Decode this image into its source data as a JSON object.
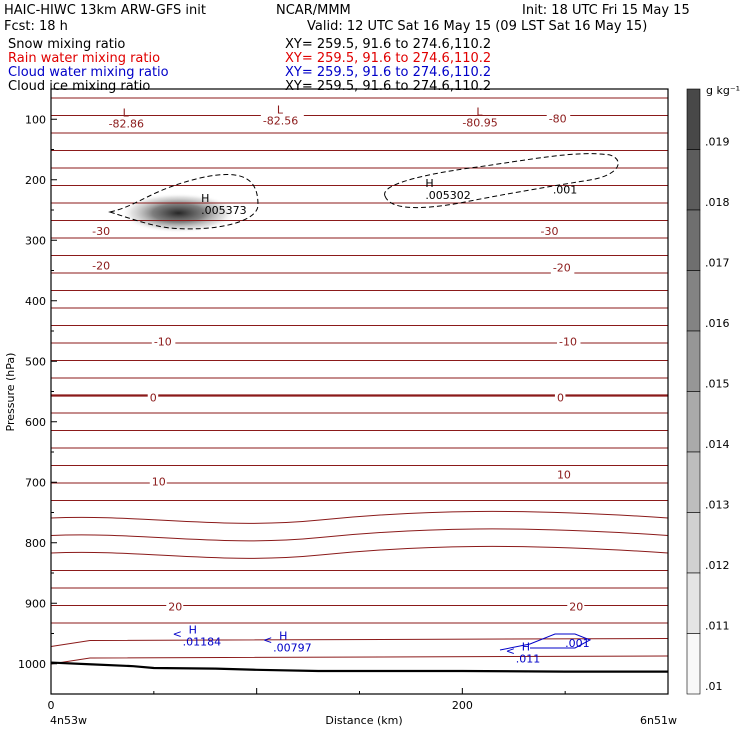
{
  "header": {
    "model": "HAIC-HIWC 13km ARW-GFS init",
    "center": "NCAR/MMM",
    "init": "Init: 18 UTC Fri 15 May 15",
    "fcst": "Fcst:    18 h",
    "valid": "Valid: 12 UTC Sat 16 May 15 (09 LST Sat 16 May 15)"
  },
  "fields": [
    {
      "name": "Snow mixing ratio",
      "xy": "XY= 259.5, 91.6 to 274.6,110.2",
      "color": "#000000"
    },
    {
      "name": "Rain water mixing ratio",
      "xy": "XY= 259.5, 91.6 to 274.6,110.2",
      "color": "#e00000"
    },
    {
      "name": "Cloud water mixing ratio",
      "xy": "XY= 259.5, 91.6 to 274.6,110.2",
      "color": "#0000c8"
    },
    {
      "name": "Cloud ice mixing ratio",
      "xy": "XY= 259.5, 91.6 to 274.6,110.2",
      "color": "#000000"
    }
  ],
  "chart_data": {
    "type": "heatmap",
    "title": "",
    "xlabel": "Distance (km)",
    "ylabel": "Pressure (hPa)",
    "xlim": [
      0,
      300
    ],
    "ylim": [
      1050,
      50
    ],
    "x_ticks": [
      0,
      200
    ],
    "y_ticks": [
      100,
      200,
      300,
      400,
      500,
      600,
      700,
      800,
      900,
      1000
    ],
    "x_endpoint_labels": [
      "4n53w",
      "6n51w"
    ],
    "colorbar": {
      "unit": "g kg⁻¹",
      "labels": [
        ".019",
        ".018",
        ".017",
        ".016",
        ".015",
        ".014",
        ".013",
        ".012",
        ".011",
        ".01"
      ]
    },
    "snow_max": {
      "x": 62,
      "p": 255
    },
    "temperature_labels": [
      {
        "text": "-82.86",
        "x": 28,
        "p": 112,
        "mark": "L"
      },
      {
        "text": "-82.56",
        "x": 103,
        "p": 107,
        "mark": "L"
      },
      {
        "text": "-80.95",
        "x": 200,
        "p": 110,
        "mark": "L"
      },
      {
        "text": "-80",
        "x": 242,
        "p": 104
      },
      {
        "text": "-30",
        "x": 20,
        "p": 290
      },
      {
        "text": "-30",
        "x": 238,
        "p": 290
      },
      {
        "text": "-20",
        "x": 20,
        "p": 347
      },
      {
        "text": "-20",
        "x": 244,
        "p": 350
      },
      {
        "text": "-10",
        "x": 50,
        "p": 472
      },
      {
        "text": "-10",
        "x": 247,
        "p": 472
      },
      {
        "text": "0",
        "x": 48,
        "p": 565
      },
      {
        "text": "0",
        "x": 246,
        "p": 565
      },
      {
        "text": "10",
        "x": 49,
        "p": 704
      },
      {
        "text": "10",
        "x": 246,
        "p": 692
      },
      {
        "text": "20",
        "x": 57,
        "p": 910
      },
      {
        "text": "20",
        "x": 252,
        "p": 910
      }
    ],
    "ice_maxima": [
      {
        "mark": "H",
        "text": ".005373",
        "x": 73,
        "p": 250
      },
      {
        "mark": "H",
        "text": ".005302",
        "x": 182,
        "p": 225
      },
      {
        "text": ".001",
        "x": 244,
        "p": 216
      }
    ],
    "cloud_water_maxima": [
      {
        "mark": "H",
        "text": ".01184",
        "x": 64,
        "p": 960
      },
      {
        "mark": "H",
        "text": ".00797",
        "x": 108,
        "p": 970
      },
      {
        "mark": "H",
        "text": ".011",
        "x": 226,
        "p": 988
      },
      {
        "text": ".001",
        "x": 250,
        "p": 962
      }
    ],
    "terrain_pressure": [
      [
        0,
        998
      ],
      [
        20,
        1001
      ],
      [
        40,
        1004
      ],
      [
        50,
        1007
      ],
      [
        80,
        1008
      ],
      [
        100,
        1010
      ],
      [
        130,
        1012
      ],
      [
        200,
        1012
      ],
      [
        250,
        1013
      ],
      [
        300,
        1013
      ]
    ]
  }
}
